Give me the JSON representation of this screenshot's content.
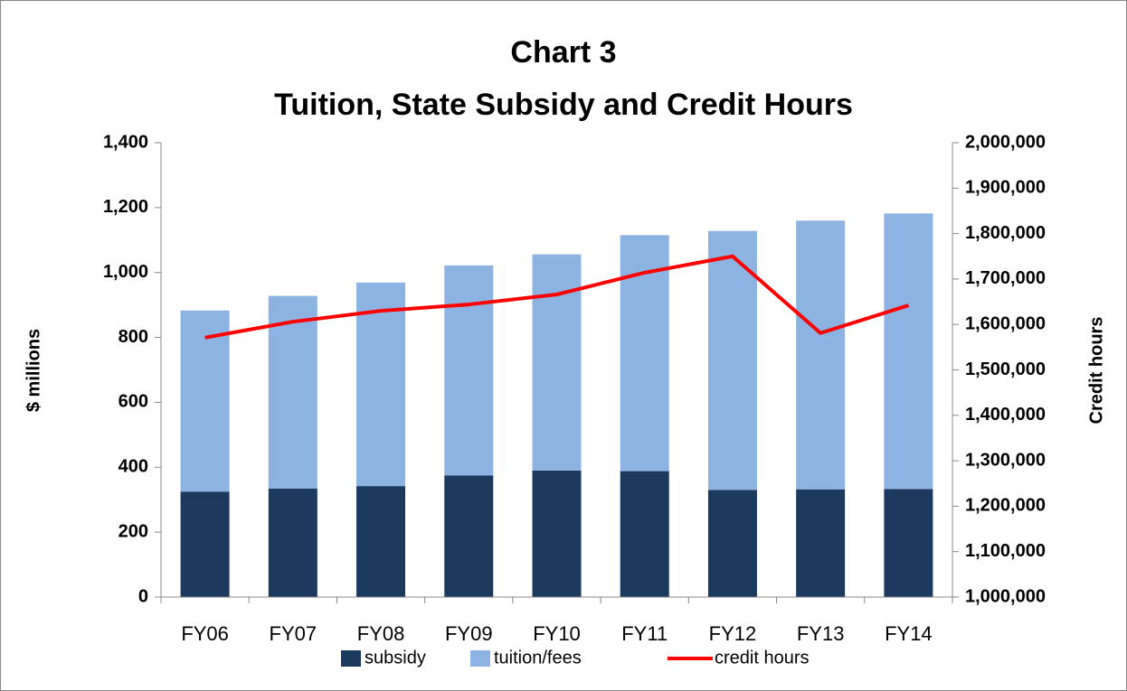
{
  "chart_data": {
    "type": "bar",
    "title": "Chart 3",
    "subtitle": "Tuition, State Subsidy and Credit Hours",
    "y_label": "$ millions",
    "y2_label": "Credit hours",
    "categories": [
      "FY06",
      "FY07",
      "FY08",
      "FY09",
      "FY10",
      "FY11",
      "FY12",
      "FY13",
      "FY14"
    ],
    "stacked": true,
    "series": [
      {
        "name": "subsidy",
        "color": "#1c3a5e",
        "values": [
          325,
          334,
          342,
          375,
          390,
          388,
          330,
          332,
          333
        ]
      },
      {
        "name": "tuition/fees",
        "color": "#8db3e2",
        "values": [
          558,
          594,
          627,
          647,
          666,
          727,
          798,
          828,
          849
        ]
      },
      {
        "name": "credit hours",
        "color": "#ff0000",
        "axis": "y2",
        "type": "line",
        "values": [
          1571000,
          1606000,
          1630000,
          1644000,
          1666000,
          1714000,
          1750000,
          1581000,
          1642000
        ]
      }
    ],
    "ylim": [
      0,
      1400
    ],
    "yticks": [
      0,
      200,
      400,
      600,
      800,
      {
        "value": 1000,
        "label": "1,000"
      },
      {
        "value": 1200,
        "label": "1,200"
      },
      {
        "value": 1400,
        "label": "1,400"
      }
    ],
    "y2lim": [
      1000000,
      2000000
    ],
    "y2ticks": [
      {
        "value": 1000000,
        "label": "1,000,000"
      },
      {
        "value": 1100000,
        "label": "1,100,000"
      },
      {
        "value": 1200000,
        "label": "1,200,000"
      },
      {
        "value": 1300000,
        "label": "1,300,000"
      },
      {
        "value": 1400000,
        "label": "1,400,000"
      },
      {
        "value": 1500000,
        "label": "1,500,000"
      },
      {
        "value": 1600000,
        "label": "1,600,000"
      },
      {
        "value": 1700000,
        "label": "1,700,000"
      },
      {
        "value": 1800000,
        "label": "1,800,000"
      },
      {
        "value": 1900000,
        "label": "1,900,000"
      },
      {
        "value": 2000000,
        "label": "2,000,000"
      }
    ],
    "grid": false,
    "legend": "bottom"
  }
}
